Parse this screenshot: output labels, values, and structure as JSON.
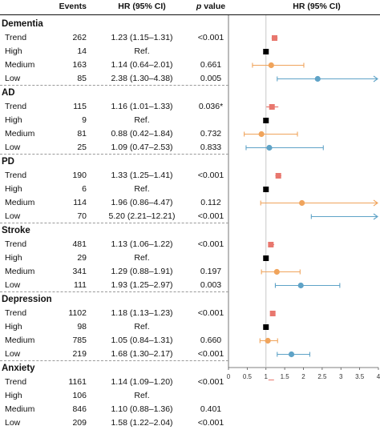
{
  "header": {
    "events": "Events",
    "hr": "HR (95% CI)",
    "p_italic": "p",
    "p_rest": " value",
    "plot_title": "HR (95% CI)"
  },
  "groups": [
    {
      "name": "Dementia",
      "rows": [
        {
          "label": "Trend",
          "events": "262",
          "hr_text": "1.23 (1.15–1.31)",
          "p": "<0.001",
          "hr": 1.23,
          "lo": 1.15,
          "hi": 1.31,
          "kind": "trend",
          "arrow": false
        },
        {
          "label": "High",
          "events": "14",
          "hr_text": "Ref.",
          "p": "",
          "hr": 1.0,
          "lo": 1.0,
          "hi": 1.0,
          "kind": "ref",
          "arrow": false
        },
        {
          "label": "Medium",
          "events": "163",
          "hr_text": "1.14 (0.64–2.01)",
          "p": "0.661",
          "hr": 1.14,
          "lo": 0.64,
          "hi": 2.01,
          "kind": "medium",
          "arrow": false
        },
        {
          "label": "Low",
          "events": "85",
          "hr_text": "2.38 (1.30–4.38)",
          "p": "0.005",
          "hr": 2.38,
          "lo": 1.3,
          "hi": 4.38,
          "kind": "low",
          "arrow": true
        }
      ]
    },
    {
      "name": "AD",
      "rows": [
        {
          "label": "Trend",
          "events": "115",
          "hr_text": "1.16 (1.01–1.33)",
          "p": "0.036*",
          "hr": 1.16,
          "lo": 1.01,
          "hi": 1.33,
          "kind": "trend",
          "arrow": false
        },
        {
          "label": "High",
          "events": "9",
          "hr_text": "Ref.",
          "p": "",
          "hr": 1.0,
          "lo": 1.0,
          "hi": 1.0,
          "kind": "ref",
          "arrow": false
        },
        {
          "label": "Medium",
          "events": "81",
          "hr_text": "0.88 (0.42–1.84)",
          "p": "0.732",
          "hr": 0.88,
          "lo": 0.42,
          "hi": 1.84,
          "kind": "medium",
          "arrow": false
        },
        {
          "label": "Low",
          "events": "25",
          "hr_text": "1.09 (0.47–2.53)",
          "p": "0.833",
          "hr": 1.09,
          "lo": 0.47,
          "hi": 2.53,
          "kind": "low",
          "arrow": false
        }
      ]
    },
    {
      "name": "PD",
      "rows": [
        {
          "label": "Trend",
          "events": "190",
          "hr_text": "1.33 (1.25–1.41)",
          "p": "<0.001",
          "hr": 1.33,
          "lo": 1.25,
          "hi": 1.41,
          "kind": "trend",
          "arrow": false
        },
        {
          "label": "High",
          "events": "6",
          "hr_text": "Ref.",
          "p": "",
          "hr": 1.0,
          "lo": 1.0,
          "hi": 1.0,
          "kind": "ref",
          "arrow": false
        },
        {
          "label": "Medium",
          "events": "114",
          "hr_text": "1.96 (0.86–4.47)",
          "p": "0.112",
          "hr": 1.96,
          "lo": 0.86,
          "hi": 4.47,
          "kind": "medium",
          "arrow": true
        },
        {
          "label": "Low",
          "events": "70",
          "hr_text": "5.20 (2.21–12.21)",
          "p": "<0.001",
          "hr": 5.2,
          "lo": 2.21,
          "hi": 12.21,
          "kind": "low",
          "arrow": true
        }
      ]
    },
    {
      "name": "Stroke",
      "rows": [
        {
          "label": "Trend",
          "events": "481",
          "hr_text": "1.13 (1.06–1.22)",
          "p": "<0.001",
          "hr": 1.13,
          "lo": 1.06,
          "hi": 1.22,
          "kind": "trend",
          "arrow": false
        },
        {
          "label": "High",
          "events": "29",
          "hr_text": "Ref.",
          "p": "",
          "hr": 1.0,
          "lo": 1.0,
          "hi": 1.0,
          "kind": "ref",
          "arrow": false
        },
        {
          "label": "Medium",
          "events": "341",
          "hr_text": "1.29 (0.88–1.91)",
          "p": "0.197",
          "hr": 1.29,
          "lo": 0.88,
          "hi": 1.91,
          "kind": "medium",
          "arrow": false
        },
        {
          "label": "Low",
          "events": "111",
          "hr_text": "1.93 (1.25–2.97)",
          "p": "0.003",
          "hr": 1.93,
          "lo": 1.25,
          "hi": 2.97,
          "kind": "low",
          "arrow": false
        }
      ]
    },
    {
      "name": "Depression",
      "rows": [
        {
          "label": "Trend",
          "events": "1102",
          "hr_text": "1.18 (1.13–1.23)",
          "p": "<0.001",
          "hr": 1.18,
          "lo": 1.13,
          "hi": 1.23,
          "kind": "trend",
          "arrow": false
        },
        {
          "label": "High",
          "events": "98",
          "hr_text": "Ref.",
          "p": "",
          "hr": 1.0,
          "lo": 1.0,
          "hi": 1.0,
          "kind": "ref",
          "arrow": false
        },
        {
          "label": "Medium",
          "events": "785",
          "hr_text": "1.05 (0.84–1.31)",
          "p": "0.660",
          "hr": 1.05,
          "lo": 0.84,
          "hi": 1.31,
          "kind": "medium",
          "arrow": false
        },
        {
          "label": "Low",
          "events": "219",
          "hr_text": "1.68 (1.30–2.17)",
          "p": "<0.001",
          "hr": 1.68,
          "lo": 1.3,
          "hi": 2.17,
          "kind": "low",
          "arrow": false
        }
      ]
    },
    {
      "name": "Anxiety",
      "rows": [
        {
          "label": "Trend",
          "events": "1161",
          "hr_text": "1.14 (1.09–1.20)",
          "p": "<0.001",
          "hr": 1.14,
          "lo": 1.09,
          "hi": 1.2,
          "kind": "trend",
          "arrow": false
        },
        {
          "label": "High",
          "events": "106",
          "hr_text": "Ref.",
          "p": "",
          "hr": 1.0,
          "lo": 1.0,
          "hi": 1.0,
          "kind": "ref",
          "arrow": false
        },
        {
          "label": "Medium",
          "events": "846",
          "hr_text": "1.10 (0.88–1.36)",
          "p": "0.401",
          "hr": 1.1,
          "lo": 0.88,
          "hi": 1.36,
          "kind": "medium",
          "arrow": false
        },
        {
          "label": "Low",
          "events": "209",
          "hr_text": "1.58 (1.22–2.04)",
          "p": "<0.001",
          "hr": 1.58,
          "lo": 1.22,
          "hi": 2.04,
          "kind": "low",
          "arrow": false
        }
      ]
    }
  ],
  "chart_data": {
    "type": "forest",
    "xlabel": "",
    "xlim": [
      0,
      4.0
    ],
    "ticks": [
      "0",
      "0.5",
      "1",
      "1.5",
      "2",
      "2.5",
      "3",
      "3.5",
      "4"
    ],
    "reference_line": 1,
    "colors": {
      "trend": "#e8776e",
      "ref": "#000000",
      "medium": "#f0a45c",
      "low": "#5fa3c7",
      "refline": "#c8c8c8",
      "separator": "#9a9a9a"
    }
  }
}
